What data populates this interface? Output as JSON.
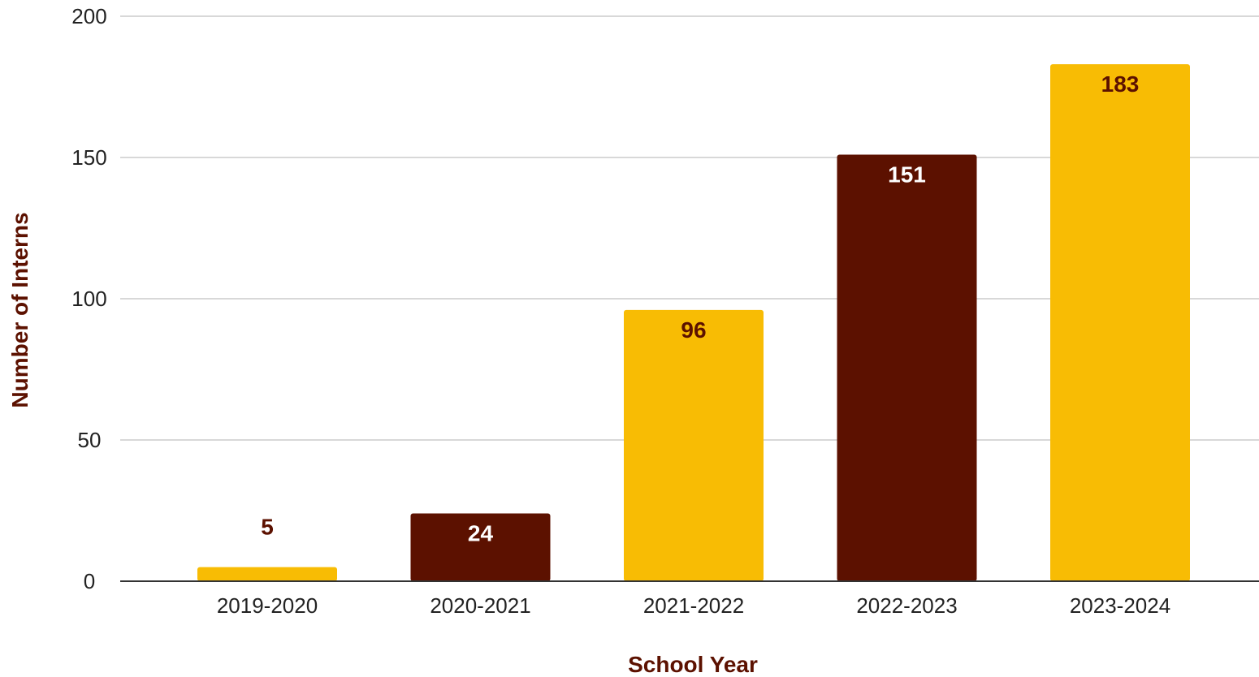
{
  "chart_data": {
    "type": "bar",
    "title": "",
    "xlabel": "School Year",
    "ylabel": "Number of Interns",
    "categories": [
      "2019-2020",
      "2020-2021",
      "2021-2022",
      "2022-2023",
      "2023-2024"
    ],
    "values": [
      5,
      24,
      96,
      151,
      183
    ],
    "data_labels": [
      "5",
      "24",
      "96",
      "151",
      "183"
    ],
    "bar_colors": [
      "#F8BC04",
      "#5C1100",
      "#F8BC04",
      "#5C1100",
      "#F8BC04"
    ],
    "label_colors": [
      "#5C1100",
      "#FFFFFF",
      "#5C1100",
      "#FFFFFF",
      "#5C1100"
    ],
    "ylim": [
      0,
      200
    ],
    "yticks": [
      0,
      50,
      100,
      150,
      200
    ],
    "ytick_labels": [
      "0",
      "50",
      "100",
      "150",
      "200"
    ],
    "grid": true,
    "legend": "none",
    "axis_title_color": "#5C1100",
    "gridline_color": "#CCCCCC",
    "baseline_color": "#333333"
  }
}
